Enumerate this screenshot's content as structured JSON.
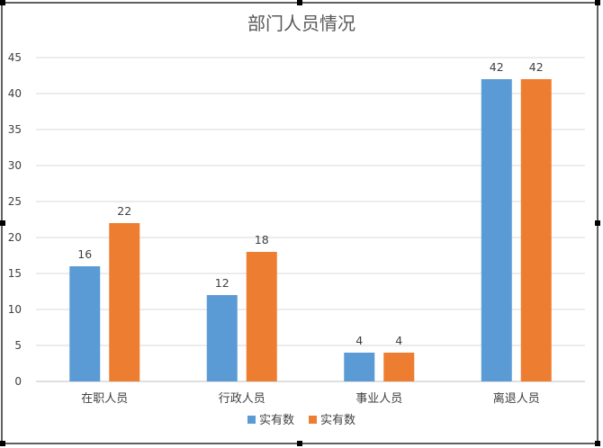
{
  "chart_data": {
    "type": "bar",
    "title": "部门人员情况",
    "xlabel": "",
    "ylabel": "",
    "categories": [
      "在职人员",
      "行政人员",
      "事业人员",
      "离退人员"
    ],
    "series": [
      {
        "name": "实有数",
        "color": "#5b9bd5",
        "values": [
          16,
          12,
          4,
          42
        ]
      },
      {
        "name": "实有数",
        "color": "#ed7d31",
        "values": [
          22,
          18,
          4,
          42
        ]
      }
    ],
    "ylim": [
      0,
      45
    ],
    "yticks": [
      0,
      5,
      10,
      15,
      20,
      25,
      30,
      35,
      40,
      45
    ],
    "grid": true,
    "legend": "bottom",
    "data_labels": true
  }
}
